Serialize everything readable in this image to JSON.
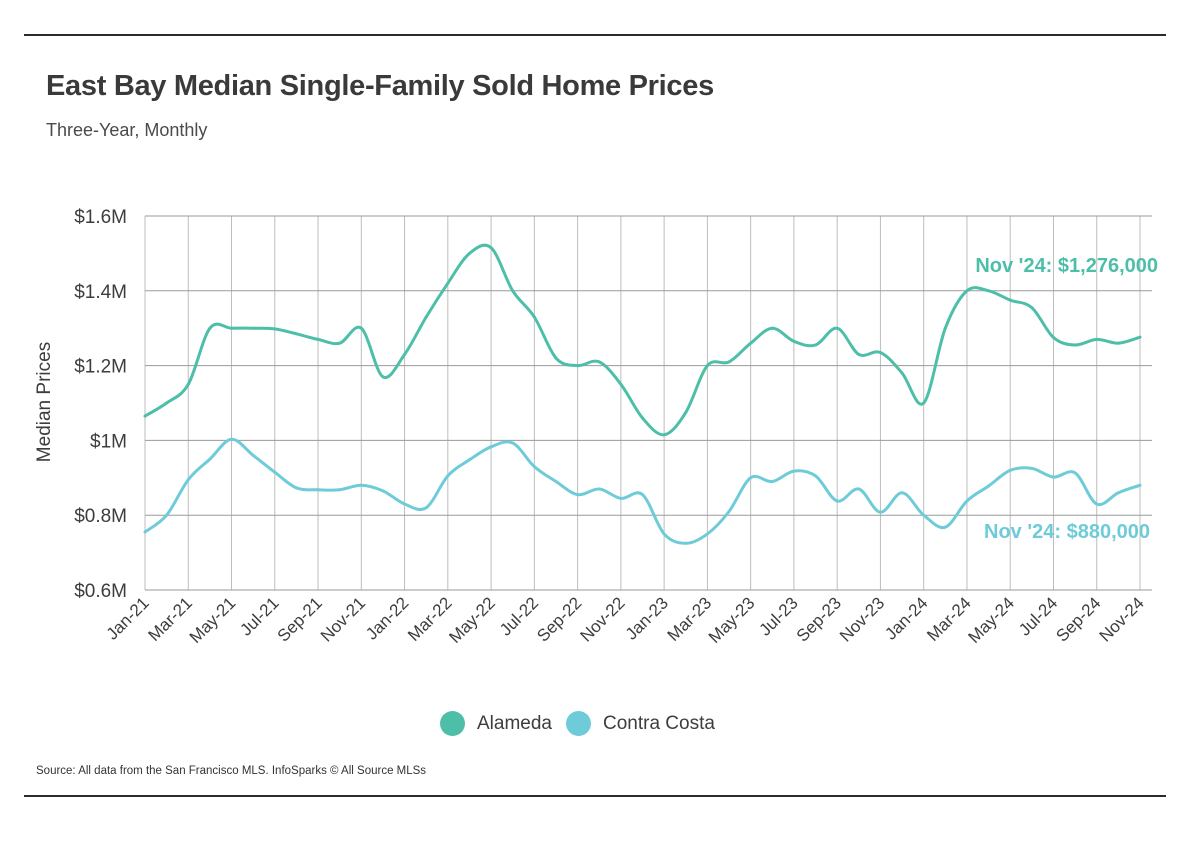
{
  "title": "East Bay Median Single-Family Sold Home Prices",
  "subtitle": "Three-Year, Monthly",
  "source": "Source:  All data from the San Francisco MLS. InfoSparks © All Source MLSs",
  "chart_data": {
    "type": "line",
    "ylabel": "Median Prices",
    "ylim": [
      600000,
      1600000
    ],
    "y_ticks": [
      {
        "value": 1600000,
        "label": "$1.6M"
      },
      {
        "value": 1400000,
        "label": "$1.4M"
      },
      {
        "value": 1200000,
        "label": "$1.2M"
      },
      {
        "value": 1000000,
        "label": "$1M"
      },
      {
        "value": 800000,
        "label": "$0.8M"
      },
      {
        "value": 600000,
        "label": "$0.6M"
      }
    ],
    "x_tick_labels": [
      "Jan-21",
      "Mar-21",
      "May-21",
      "Jul-21",
      "Sep-21",
      "Nov-21",
      "Jan-22",
      "Mar-22",
      "May-22",
      "Jul-22",
      "Sep-22",
      "Nov-22",
      "Jan-23",
      "Mar-23",
      "May-23",
      "Jul-23",
      "Sep-23",
      "Nov-23",
      "Jan-24",
      "Mar-24",
      "May-24",
      "Jul-24",
      "Sep-24",
      "Nov-24"
    ],
    "categories": [
      "Jan-21",
      "Feb-21",
      "Mar-21",
      "Apr-21",
      "May-21",
      "Jun-21",
      "Jul-21",
      "Aug-21",
      "Sep-21",
      "Oct-21",
      "Nov-21",
      "Dec-21",
      "Jan-22",
      "Feb-22",
      "Mar-22",
      "Apr-22",
      "May-22",
      "Jun-22",
      "Jul-22",
      "Aug-22",
      "Sep-22",
      "Oct-22",
      "Nov-22",
      "Dec-22",
      "Jan-23",
      "Feb-23",
      "Mar-23",
      "Apr-23",
      "May-23",
      "Jun-23",
      "Jul-23",
      "Aug-23",
      "Sep-23",
      "Oct-23",
      "Nov-23",
      "Dec-23",
      "Jan-24",
      "Feb-24",
      "Mar-24",
      "Apr-24",
      "May-24",
      "Jun-24",
      "Jul-24",
      "Aug-24",
      "Sep-24",
      "Oct-24",
      "Nov-24"
    ],
    "series": [
      {
        "name": "Alameda",
        "color": "#4dbfa8",
        "values": [
          1065000,
          1100000,
          1150000,
          1300000,
          1300000,
          1300000,
          1298000,
          1285000,
          1270000,
          1260000,
          1300000,
          1170000,
          1230000,
          1330000,
          1420000,
          1500000,
          1515000,
          1400000,
          1330000,
          1220000,
          1200000,
          1210000,
          1150000,
          1060000,
          1015000,
          1075000,
          1200000,
          1210000,
          1260000,
          1300000,
          1265000,
          1255000,
          1300000,
          1230000,
          1235000,
          1180000,
          1100000,
          1300000,
          1400000,
          1400000,
          1375000,
          1355000,
          1275000,
          1255000,
          1270000,
          1260000,
          1276000
        ]
      },
      {
        "name": "Contra Costa",
        "color": "#6ecbd8",
        "values": [
          755000,
          800000,
          895000,
          950000,
          1003000,
          960000,
          915000,
          873000,
          868000,
          868000,
          880000,
          865000,
          830000,
          820000,
          905000,
          948000,
          983000,
          993000,
          930000,
          890000,
          855000,
          870000,
          845000,
          855000,
          750000,
          725000,
          750000,
          810000,
          900000,
          890000,
          918000,
          905000,
          838000,
          870000,
          808000,
          860000,
          800000,
          768000,
          838000,
          878000,
          920000,
          925000,
          902000,
          913000,
          830000,
          860000,
          880000
        ]
      }
    ],
    "annotations": [
      {
        "series": "Alameda",
        "text": "Nov '24: $1,276,000"
      },
      {
        "series": "Contra Costa",
        "text": "Nov '24: $880,000"
      }
    ],
    "grid": true,
    "legend_position": "bottom-center"
  }
}
